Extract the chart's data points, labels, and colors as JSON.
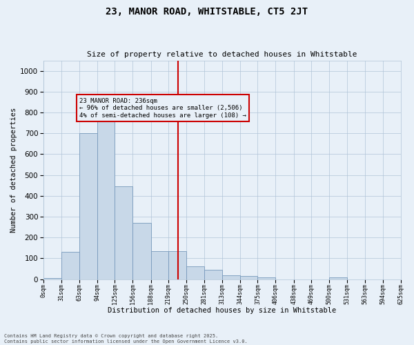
{
  "title": "23, MANOR ROAD, WHITSTABLE, CT5 2JT",
  "subtitle": "Size of property relative to detached houses in Whitstable",
  "xlabel": "Distribution of detached houses by size in Whitstable",
  "ylabel": "Number of detached properties",
  "footer_line1": "Contains HM Land Registry data © Crown copyright and database right 2025.",
  "footer_line2": "Contains public sector information licensed under the Open Government Licence v3.0.",
  "bar_color": "#c8d8e8",
  "bar_edge_color": "#7799bb",
  "grid_color": "#b0c4d8",
  "background_color": "#e8f0f8",
  "vline_x": 236,
  "vline_color": "#cc0000",
  "annotation_text": "23 MANOR ROAD: 236sqm\n← 96% of detached houses are smaller (2,506)\n4% of semi-detached houses are larger (108) →",
  "annotation_box_color": "#cc0000",
  "bin_edges": [
    0,
    31,
    63,
    94,
    125,
    156,
    188,
    219,
    250,
    281,
    313,
    344,
    375,
    406,
    438,
    469,
    500,
    531,
    563,
    594,
    625
  ],
  "bin_labels": [
    "0sqm",
    "31sqm",
    "63sqm",
    "94sqm",
    "125sqm",
    "156sqm",
    "188sqm",
    "219sqm",
    "250sqm",
    "281sqm",
    "313sqm",
    "344sqm",
    "375sqm",
    "406sqm",
    "438sqm",
    "469sqm",
    "500sqm",
    "531sqm",
    "563sqm",
    "594sqm",
    "625sqm"
  ],
  "counts": [
    5,
    130,
    700,
    775,
    445,
    270,
    135,
    135,
    60,
    45,
    20,
    15,
    10,
    0,
    0,
    0,
    10,
    0,
    0,
    0
  ],
  "ylim": [
    0,
    1050
  ],
  "yticks": [
    0,
    100,
    200,
    300,
    400,
    500,
    600,
    700,
    800,
    900,
    1000
  ]
}
